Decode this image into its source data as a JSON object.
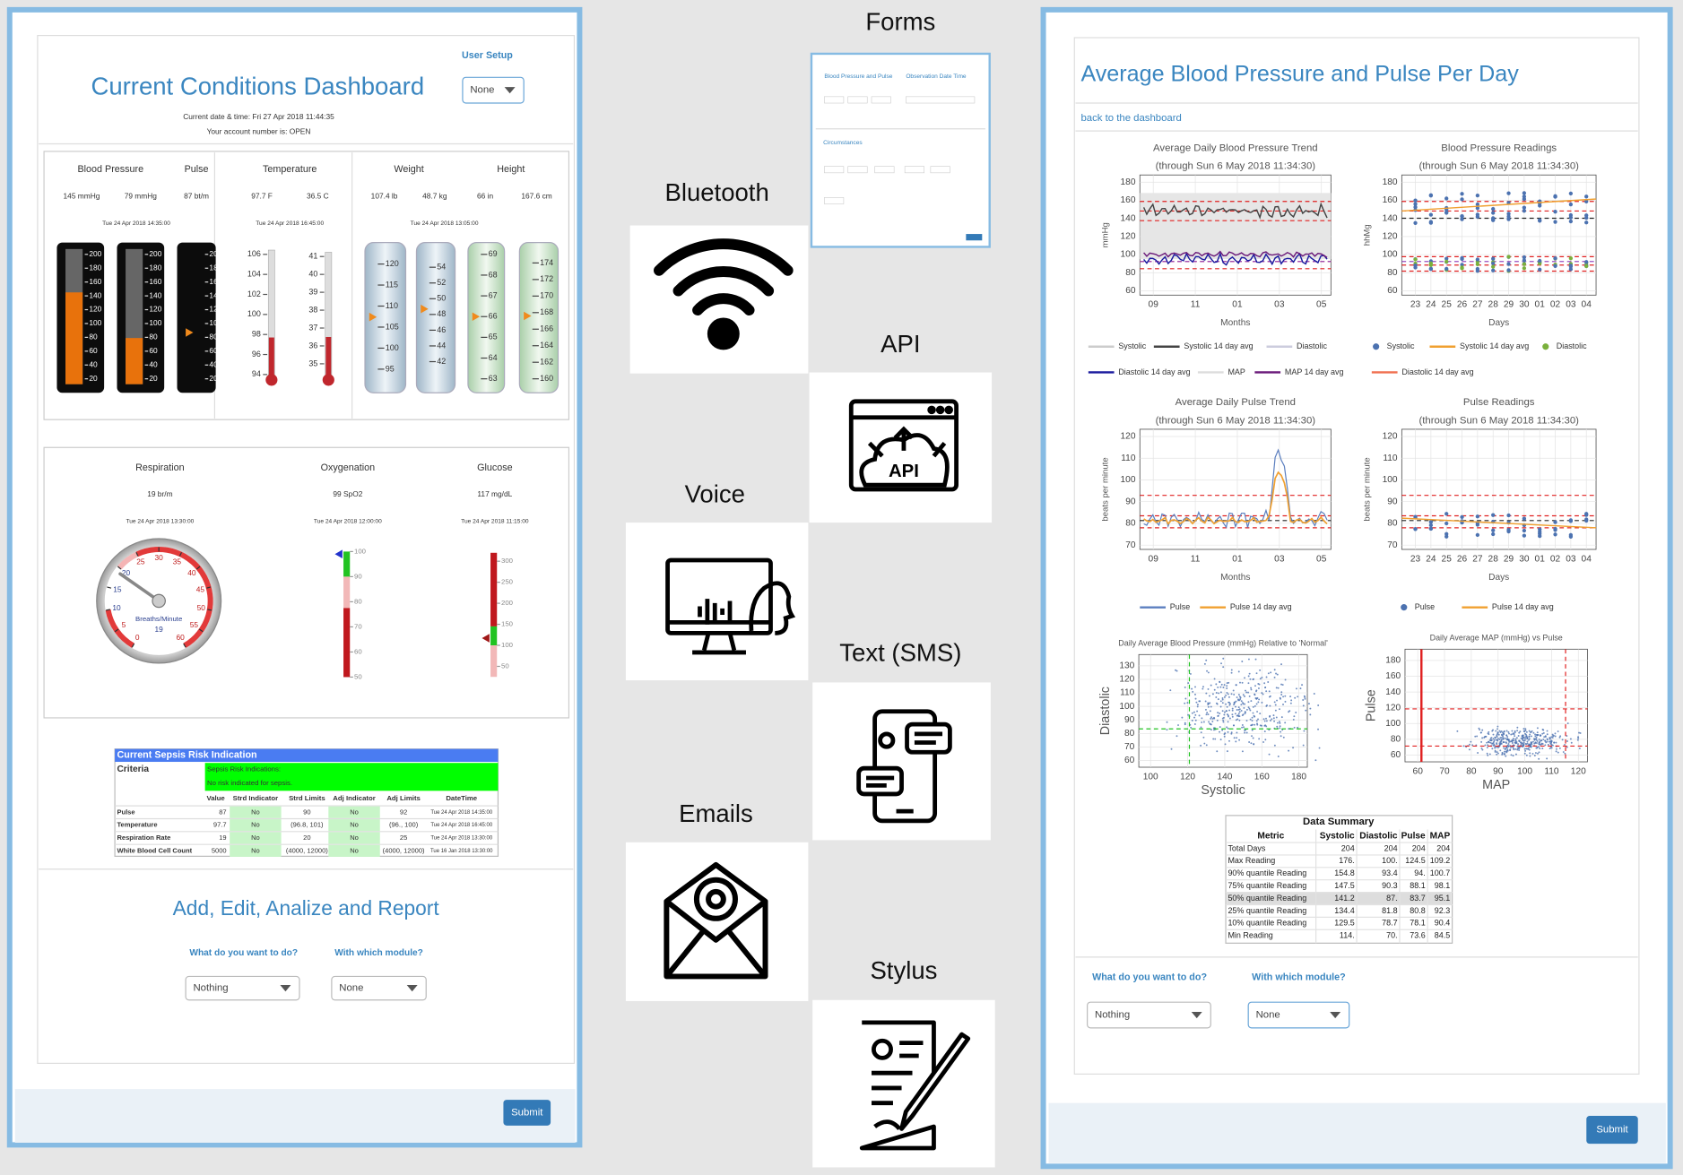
{
  "left": {
    "user_setup": "User Setup",
    "title": "Current Conditions Dashboard",
    "select": "None",
    "datetime": "Current date & time: Fri 27 Apr 2018 11:44:35",
    "account": "Your account number is: OPEN",
    "vitals1": {
      "labels": [
        "Blood Pressure",
        "Pulse",
        "Temperature",
        "Weight",
        "Height"
      ],
      "values": [
        "145 mmHg",
        "79 mmHg",
        "87 bt/m",
        "97.7 F",
        "36.5 C",
        "107.4 lb",
        "48.7 kg",
        "66 in",
        "167.6 cm"
      ],
      "times": [
        "Tue 24 Apr 2018 14:35:00",
        "Tue 24 Apr 2018 16:45:00",
        "Tue 24 Apr 2018 13:05:00"
      ]
    },
    "tube_ticks": [
      200,
      180,
      160,
      140,
      120,
      100,
      80,
      60,
      40,
      20
    ],
    "temp_f_ticks": [
      106,
      104,
      102,
      100,
      98,
      96,
      94
    ],
    "temp_c_ticks": [
      41,
      40,
      39,
      38,
      37,
      36,
      35
    ],
    "lb_ticks": [
      120,
      115,
      110,
      105,
      100,
      95
    ],
    "kg_ticks": [
      54,
      52,
      50,
      48,
      46,
      44,
      42
    ],
    "in_ticks": [
      69,
      68,
      67,
      66,
      65,
      64,
      63
    ],
    "cm_ticks": [
      174,
      172,
      170,
      168,
      166,
      164,
      162,
      160
    ],
    "vitals2": {
      "labels": [
        "Respiration",
        "Oxygenation",
        "Glucose"
      ],
      "values": [
        "19 br/m",
        "99 SpO2",
        "117 mg/dL"
      ],
      "times": [
        "Tue 24 Apr 2018 13:30:00",
        "Tue 24 Apr 2018 12:00:00",
        "Tue 24 Apr 2018 11:15:00"
      ]
    },
    "dial_ticks": [
      0,
      5,
      10,
      15,
      20,
      25,
      30,
      35,
      40,
      45,
      50,
      55,
      60
    ],
    "dial_unit": "Breaths/Minute",
    "dial_value": "19",
    "oxy_ticks": [
      100,
      90,
      80,
      70,
      60,
      50
    ],
    "glucose_ticks": [
      300,
      250,
      200,
      150,
      100,
      50
    ],
    "sepsis": {
      "title": "Current Sepsis Risk Indication",
      "criteria": "Criteria",
      "indication": [
        "Sepsis Risk Indications:",
        "No risk indicated for sepsis."
      ],
      "headers": [
        "Value",
        "Strd Indicator",
        "Strd Limits",
        "Adj Indicator",
        "Adj Limits",
        "DateTime"
      ],
      "rows": [
        [
          "Pulse",
          "87",
          "No",
          "90",
          "No",
          "92",
          "Tue 24 Apr 2018 14:35:00"
        ],
        [
          "Temperature",
          "97.7",
          "No",
          "(96.8, 101)",
          "No",
          "(96., 100)",
          "Tue 24 Apr 2018 16:45:00"
        ],
        [
          "Respiration Rate",
          "19",
          "No",
          "20",
          "No",
          "25",
          "Tue 24 Apr 2018 13:30:00"
        ],
        [
          "White Blood Cell Count",
          "5000",
          "No",
          "(4000, 12000)",
          "No",
          "(4000, 12000)",
          "Tue 16 Jan 2018 13:30:00"
        ]
      ]
    },
    "section_title": "Add, Edit, Analize and Report",
    "q1": "What do you want to do?",
    "q2": "With which module?",
    "select1": "Nothing",
    "select2": "None",
    "submit": "Submit"
  },
  "middle": {
    "labels": [
      "Forms",
      "Bluetooth",
      "API",
      "Voice",
      "Text (SMS)",
      "Emails",
      "Stylus"
    ],
    "form_thumb": [
      "Blood Pressure and Pulse",
      "Observation Date Time",
      "Circumstances"
    ],
    "api_icon": "API"
  },
  "right": {
    "title": "Average Blood Pressure and Pulse Per Day",
    "back": "back to the dashboard",
    "charts": [
      {
        "title": "Average Daily Blood Pressure Trend",
        "subtitle": "(through Sun 6 May 2018 11:34:30)",
        "ylabel": "mmHg",
        "xlabel": "Months",
        "yticks": [
          180,
          160,
          140,
          120,
          100,
          80,
          60
        ],
        "xticks": [
          "09",
          "11",
          "01",
          "03",
          "05"
        ],
        "legend": [
          "Systolic",
          "Systolic 14 day avg",
          "Diastolic",
          "Diastolic 14 day avg",
          "MAP",
          "MAP 14 day avg"
        ]
      },
      {
        "title": "Blood Pressure Readings",
        "subtitle": "(through Sun 6 May 2018 11:34:30)",
        "ylabel": "hhMg",
        "xlabel": "Days",
        "yticks": [
          180,
          160,
          140,
          120,
          100,
          80,
          60
        ],
        "xticks": [
          "23",
          "24",
          "25",
          "26",
          "27",
          "28",
          "29",
          "30",
          "01",
          "02",
          "03",
          "04"
        ],
        "legend": [
          "Systolic",
          "Systolic 14 day avg",
          "Diastolic",
          "Diastolic 14 day avg"
        ]
      },
      {
        "title": "Average Daily Pulse Trend",
        "subtitle": "(through Sun 6 May 2018 11:34:30)",
        "ylabel": "beats per minute",
        "xlabel": "Months",
        "yticks": [
          120,
          110,
          100,
          90,
          80,
          70
        ],
        "xticks": [
          "09",
          "11",
          "01",
          "03",
          "05"
        ],
        "legend": [
          "Pulse",
          "Pulse 14 day avg"
        ]
      },
      {
        "title": "Pulse Readings",
        "subtitle": "(through Sun 6 May 2018 11:34:30)",
        "ylabel": "beats per minute",
        "xlabel": "Days",
        "yticks": [
          120,
          110,
          100,
          90,
          80,
          70
        ],
        "xticks": [
          "23",
          "24",
          "25",
          "26",
          "27",
          "28",
          "29",
          "30",
          "01",
          "02",
          "03",
          "04"
        ],
        "legend": [
          "Pulse",
          "Pulse 14 day avg"
        ]
      },
      {
        "title": "Daily Average Blood Pressure (mmHg) Relative to 'Normal'",
        "ylabel": "Diastolic",
        "xlabel": "Systolic",
        "yticks": [
          130,
          120,
          110,
          100,
          90,
          80,
          70,
          60
        ],
        "xticks": [
          "100",
          "120",
          "140",
          "160",
          "180"
        ]
      },
      {
        "title": "Daily Average MAP (mmHg) vs Pulse",
        "ylabel": "Pulse",
        "xlabel": "MAP",
        "yticks": [
          180,
          160,
          140,
          120,
          100,
          80,
          60
        ],
        "xticks": [
          "60",
          "70",
          "80",
          "90",
          "100",
          "110",
          "120"
        ]
      }
    ],
    "summary": {
      "title": "Data Summary",
      "headers": [
        "Metric",
        "Systolic",
        "Diastolic",
        "Pulse",
        "MAP"
      ],
      "rows": [
        [
          "Total Days",
          "204",
          "204",
          "204",
          "204"
        ],
        [
          "Max Reading",
          "176.",
          "100.",
          "124.5",
          "109.2"
        ],
        [
          "90% quantile Reading",
          "154.8",
          "93.4",
          "94.",
          "100.7"
        ],
        [
          "75% quantile Reading",
          "147.5",
          "90.3",
          "88.1",
          "98.1"
        ],
        [
          "50% quantile Reading",
          "141.2",
          "87.",
          "83.7",
          "95.1"
        ],
        [
          "25% quantile Reading",
          "134.4",
          "81.8",
          "80.8",
          "92.3"
        ],
        [
          "10% quantile Reading",
          "129.5",
          "78.7",
          "78.1",
          "90.4"
        ],
        [
          "Min Reading",
          "114.",
          "70.",
          "73.6",
          "84.5"
        ]
      ]
    },
    "q1": "What do you want to do?",
    "q2": "With which module?",
    "select1": "Nothing",
    "select2": "None",
    "submit": "Submit"
  }
}
